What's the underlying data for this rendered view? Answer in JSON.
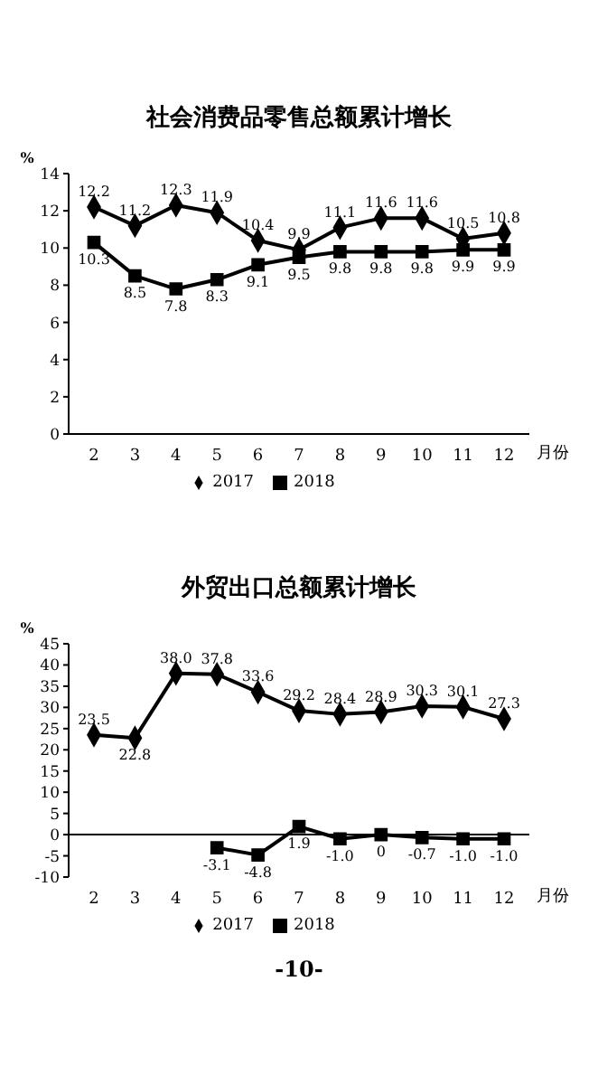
{
  "chart_data": [
    {
      "type": "line",
      "title": "社会消费品零售总额累计增长",
      "ylabel": "%",
      "xlabel": "月份",
      "categories": [
        "2",
        "3",
        "4",
        "5",
        "6",
        "7",
        "8",
        "9",
        "10",
        "11",
        "12"
      ],
      "ylim": [
        0,
        14
      ],
      "yticks": [
        0,
        2,
        4,
        6,
        8,
        10,
        12,
        14
      ],
      "legend": "bottom",
      "series": [
        {
          "name": "2017",
          "color": "#000000",
          "marker": "diamond",
          "values": [
            12.2,
            11.2,
            12.3,
            11.9,
            10.4,
            9.9,
            11.1,
            11.6,
            11.6,
            10.5,
            10.8
          ],
          "value_labels": [
            "12.2",
            "11.2",
            "12.3",
            "11.9",
            "10.4",
            "9.9",
            "11.1",
            "11.6",
            "11.6",
            "10.5",
            "10.8"
          ]
        },
        {
          "name": "2018",
          "color": "#000000",
          "marker": "square",
          "values": [
            10.3,
            8.5,
            7.8,
            8.3,
            9.1,
            9.5,
            9.8,
            9.8,
            9.8,
            9.9,
            9.9
          ],
          "value_labels": [
            "10.3",
            "8.5",
            "7.8",
            "8.3",
            "9.1",
            "9.5",
            "9.8",
            "9.8",
            "9.8",
            "9.9",
            "9.9"
          ]
        }
      ]
    },
    {
      "type": "line",
      "title": "外贸出口总额累计增长",
      "ylabel": "%",
      "xlabel": "月份",
      "categories": [
        "2",
        "3",
        "4",
        "5",
        "6",
        "7",
        "8",
        "9",
        "10",
        "11",
        "12"
      ],
      "ylim": [
        -10,
        45
      ],
      "yticks": [
        -10,
        -5,
        0,
        5,
        10,
        15,
        20,
        25,
        30,
        35,
        40,
        45
      ],
      "legend": "bottom",
      "annotations": [
        "-10-"
      ],
      "series": [
        {
          "name": "2017",
          "color": "#000000",
          "marker": "diamond",
          "values": [
            23.5,
            22.8,
            38.0,
            37.8,
            33.6,
            29.2,
            28.4,
            28.9,
            30.3,
            30.1,
            27.3
          ],
          "value_labels": [
            "23.5",
            "22.8",
            "38.0",
            "37.8",
            "33.6",
            "29.2",
            "28.4",
            "28.9",
            "30.3",
            "30.1",
            "27.3"
          ]
        },
        {
          "name": "2018",
          "color": "#000000",
          "marker": "square",
          "values": [
            null,
            null,
            null,
            -3.1,
            -4.8,
            1.9,
            -1.0,
            0,
            -0.7,
            -1.0,
            -1.0
          ],
          "value_labels": [
            null,
            null,
            null,
            "-3.1",
            "-4.8",
            "1.9",
            "-1.0",
            "0",
            "-0.7",
            "-1.0",
            "-1.0"
          ]
        }
      ]
    }
  ]
}
